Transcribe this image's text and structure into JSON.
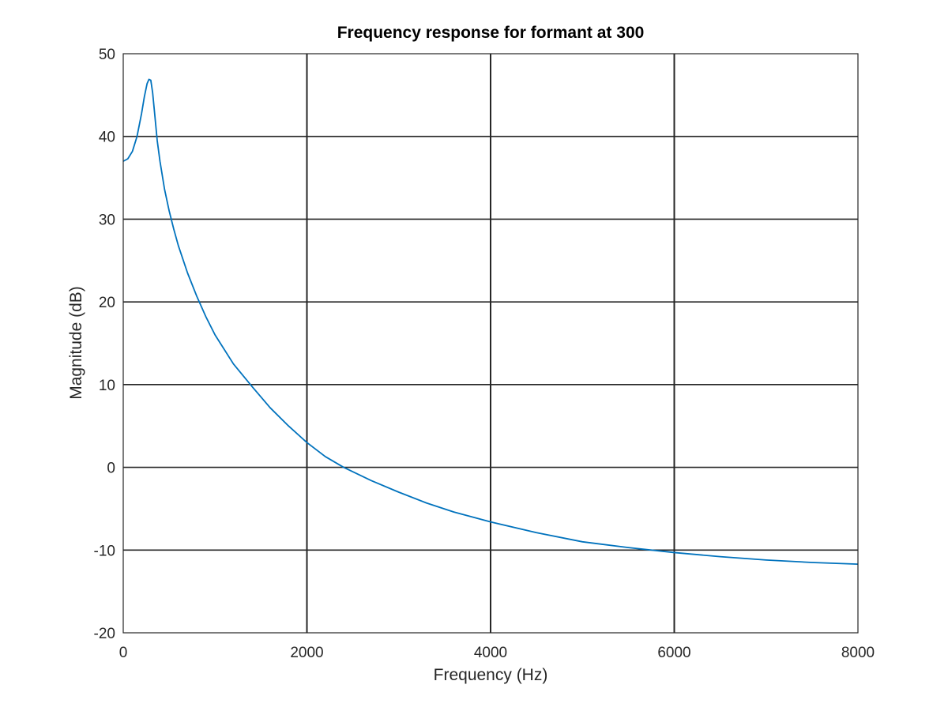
{
  "chart_data": {
    "type": "line",
    "title": "Frequency response for formant at 300",
    "xlabel": "Frequency (Hz)",
    "ylabel": "Magnitude (dB)",
    "xlim": [
      0,
      8000
    ],
    "ylim": [
      -20,
      50
    ],
    "xticks": [
      0,
      2000,
      4000,
      6000,
      8000
    ],
    "xtick_labels": [
      "0",
      "2000",
      "4000",
      "6000",
      "8000"
    ],
    "yticks": [
      -20,
      -10,
      0,
      10,
      20,
      30,
      40,
      50
    ],
    "ytick_labels": [
      "-20",
      "-10",
      "0",
      "10",
      "20",
      "30",
      "40",
      "50"
    ],
    "grid": true,
    "colors": {
      "line": "#0072BD",
      "grid": "#262626",
      "axis": "#262626"
    },
    "series": [
      {
        "x": [
          0,
          50,
          100,
          150,
          200,
          230,
          260,
          280,
          300,
          320,
          340,
          370,
          400,
          450,
          500,
          550,
          600,
          700,
          800,
          900,
          1000,
          1200,
          1400,
          1500,
          1600,
          1800,
          2000,
          2200,
          2400,
          2700,
          3000,
          3300,
          3600,
          4000,
          4500,
          5000,
          5500,
          6000,
          6500,
          7000,
          7500,
          8000
        ],
        "y": [
          37.0,
          37.3,
          38.2,
          40.0,
          42.8,
          44.8,
          46.4,
          46.9,
          46.8,
          45.3,
          43.0,
          39.5,
          37.0,
          33.6,
          31.0,
          28.8,
          26.8,
          23.5,
          20.7,
          18.2,
          16.0,
          12.5,
          9.8,
          8.5,
          7.2,
          5.0,
          3.0,
          1.3,
          0.0,
          -1.6,
          -3.0,
          -4.3,
          -5.4,
          -6.6,
          -7.9,
          -9.0,
          -9.7,
          -10.3,
          -10.8,
          -11.2,
          -11.5,
          -11.7
        ]
      }
    ]
  }
}
